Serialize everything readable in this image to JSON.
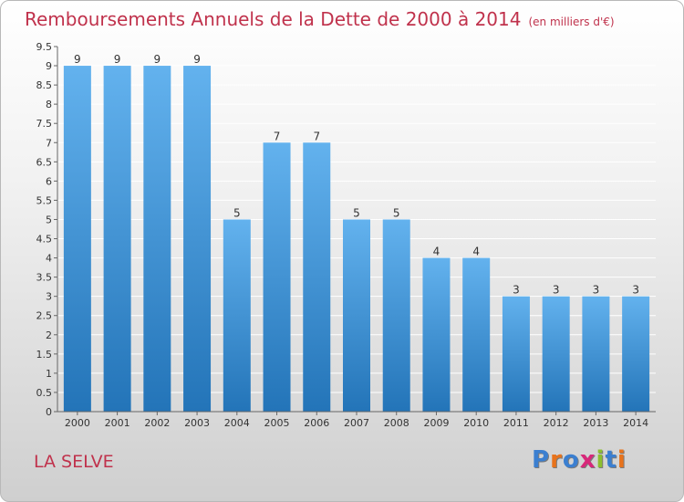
{
  "title": "Remboursements Annuels de la Dette de 2000 à 2014",
  "unit": "(en milliers d'€)",
  "location": "LA SELVE",
  "brand": "Proxiti",
  "brand_letter_colors": [
    "#3b7fd0",
    "#e8731c",
    "#3b7fd0",
    "#d8287a",
    "#8cbf2f",
    "#3b7fd0",
    "#e8731c"
  ],
  "colors": {
    "title": "#c0324c",
    "bar_top": "#63b2ee",
    "bar_bottom": "#2374b8",
    "grid": "#ffffff",
    "axis": "#666666"
  },
  "chart_data": {
    "type": "bar",
    "categories": [
      "2000",
      "2001",
      "2002",
      "2003",
      "2004",
      "2005",
      "2006",
      "2007",
      "2008",
      "2009",
      "2010",
      "2011",
      "2012",
      "2013",
      "2014"
    ],
    "values": [
      9,
      9,
      9,
      9,
      5,
      7,
      7,
      5,
      5,
      4,
      4,
      3,
      3,
      3,
      3
    ],
    "data_labels": [
      "9",
      "9",
      "9",
      "9",
      "5",
      "7",
      "7",
      "5",
      "5",
      "4",
      "4",
      "3",
      "3",
      "3",
      "3"
    ],
    "title": "Remboursements Annuels de la Dette de 2000 à 2014",
    "xlabel": "",
    "ylabel": "",
    "ylim": [
      0,
      9.5
    ],
    "yticks": [
      0,
      0.5,
      1,
      1.5,
      2,
      2.5,
      3,
      3.5,
      4,
      4.5,
      5,
      5.5,
      6,
      6.5,
      7,
      7.5,
      8,
      8.5,
      9,
      9.5
    ],
    "ytick_labels": [
      "0",
      "0.5",
      "1",
      "1.5",
      "2",
      "2.5",
      "3",
      "3.5",
      "4",
      "4.5",
      "5",
      "5.5",
      "6",
      "6.5",
      "7",
      "7.5",
      "8",
      "8.5",
      "9",
      "9.5"
    ],
    "grid": true,
    "legend": "none"
  }
}
